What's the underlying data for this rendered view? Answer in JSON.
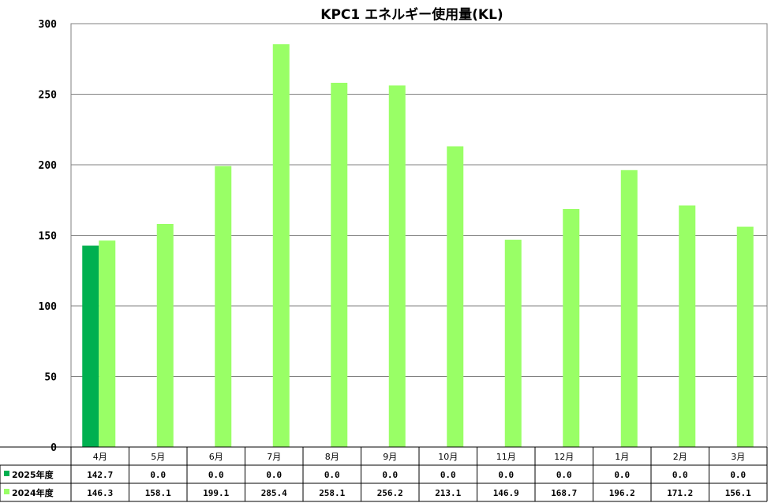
{
  "chart_data": {
    "type": "bar",
    "title": "KPC1 エネルギー使用量(KL)",
    "categories": [
      "4月",
      "5月",
      "6月",
      "7月",
      "8月",
      "9月",
      "10月",
      "11月",
      "12月",
      "1月",
      "2月",
      "3月"
    ],
    "series": [
      {
        "name": "2025年度",
        "color": "#00b050",
        "values": [
          142.7,
          0.0,
          0.0,
          0.0,
          0.0,
          0.0,
          0.0,
          0.0,
          0.0,
          0.0,
          0.0,
          0.0
        ],
        "labels": [
          "142.7",
          "0.0",
          "0.0",
          "0.0",
          "0.0",
          "0.0",
          "0.0",
          "0.0",
          "0.0",
          "0.0",
          "0.0",
          "0.0"
        ]
      },
      {
        "name": "2024年度",
        "color": "#99ff66",
        "values": [
          146.3,
          158.1,
          199.1,
          285.4,
          258.1,
          256.2,
          213.1,
          146.9,
          168.7,
          196.2,
          171.2,
          156.1
        ],
        "labels": [
          "146.3",
          "158.1",
          "199.1",
          "285.4",
          "258.1",
          "256.2",
          "213.1",
          "146.9",
          "168.7",
          "196.2",
          "171.2",
          "156.1"
        ]
      }
    ],
    "ylim": [
      0,
      300
    ],
    "yticks": [
      "0",
      "50",
      "100",
      "150",
      "200",
      "250",
      "300"
    ],
    "grid": true,
    "legend": "data-table"
  }
}
